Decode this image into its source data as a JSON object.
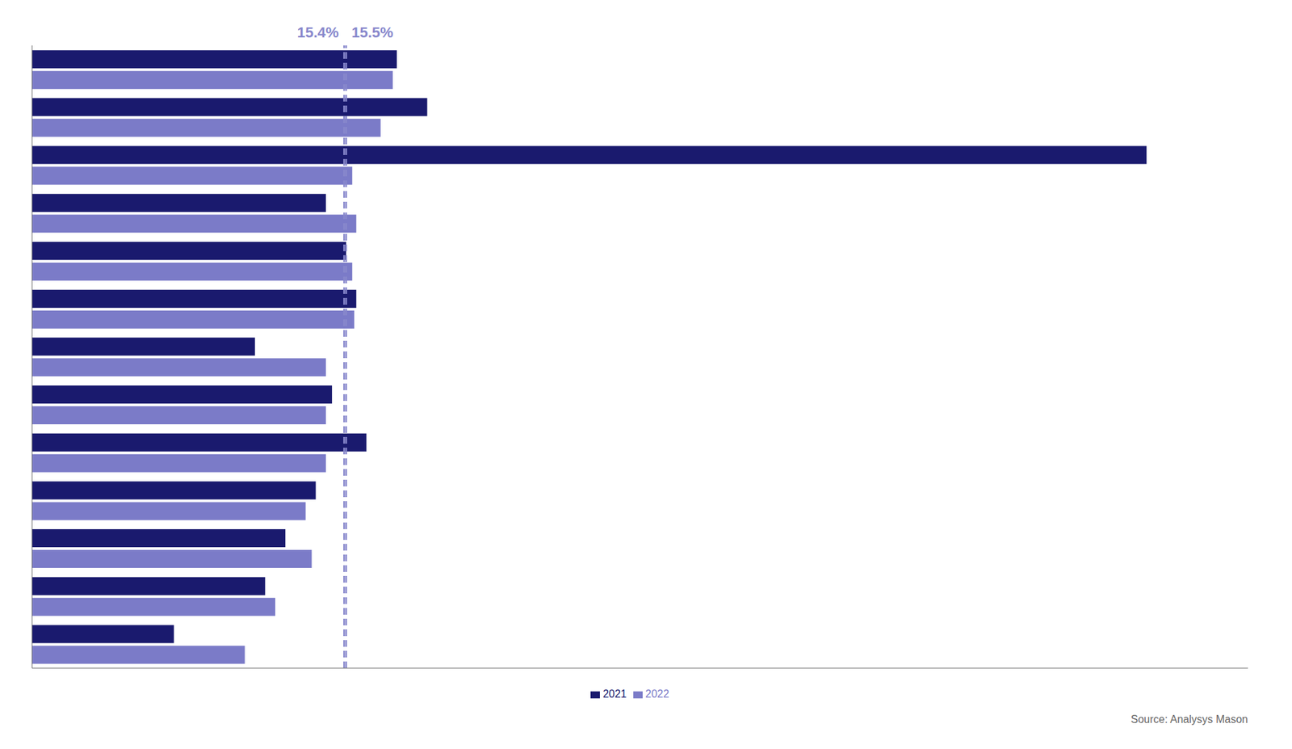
{
  "chart_data": {
    "type": "bar",
    "orientation": "horizontal",
    "categories": [
      null,
      null,
      null,
      null,
      null,
      null,
      null,
      null,
      null,
      null,
      null,
      null,
      null
    ],
    "series": [
      {
        "name": "2021",
        "color": "#1a1a6e",
        "values": [
          18.0,
          19.5,
          55.0,
          14.5,
          15.5,
          16.0,
          11.0,
          14.8,
          16.5,
          14.0,
          12.5,
          11.5,
          7.0
        ]
      },
      {
        "name": "2022",
        "color": "#7b7bc8",
        "values": [
          17.8,
          17.2,
          15.8,
          16.0,
          15.8,
          15.9,
          14.5,
          14.5,
          14.5,
          13.5,
          13.8,
          12.0,
          10.5
        ]
      }
    ],
    "xlim": [
      0,
      60
    ],
    "tick_labels": false,
    "legend": "bottom",
    "reference_lines": [
      {
        "value": 15.4,
        "label": "15.4%",
        "color": "#8888cc"
      },
      {
        "value": 15.5,
        "label": "15.5%",
        "color": "#8888cc"
      }
    ],
    "annotations": [
      "Source: Analysys Mason"
    ]
  }
}
